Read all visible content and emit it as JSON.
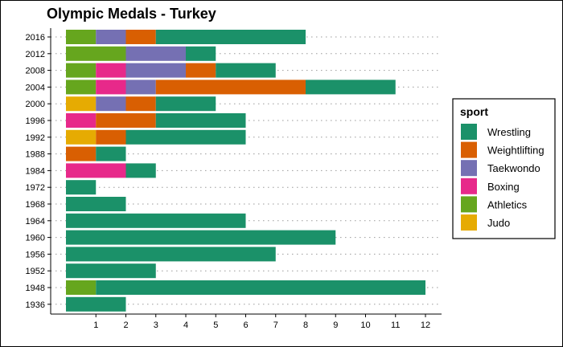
{
  "chart_data": {
    "type": "bar",
    "orientation": "horizontal",
    "stacked": true,
    "title": "Olympic Medals - Turkey",
    "xlabel": "",
    "ylabel": "",
    "xlim": [
      0,
      12.6
    ],
    "x_ticks": [
      1,
      2,
      3,
      4,
      5,
      6,
      7,
      8,
      9,
      10,
      11,
      12
    ],
    "grid": "dotted horizontal lines",
    "legend_title": "sport",
    "legend_position": "right",
    "categories": [
      "2016",
      "2012",
      "2008",
      "2004",
      "2000",
      "1996",
      "1992",
      "1988",
      "1984",
      "1972",
      "1968",
      "1964",
      "1960",
      "1956",
      "1952",
      "1948",
      "1936"
    ],
    "stack_order": [
      "Athletics",
      "Judo",
      "Boxing",
      "Taekwondo",
      "Weightlifting",
      "Wrestling"
    ],
    "series": [
      {
        "name": "Wrestling",
        "color": "#1b9169",
        "values": [
          5,
          1,
          2,
          3,
          2,
          3,
          4,
          1,
          1,
          1,
          2,
          6,
          9,
          7,
          3,
          11,
          2
        ]
      },
      {
        "name": "Weightlifting",
        "color": "#d95f02",
        "values": [
          1,
          0,
          1,
          5,
          1,
          2,
          1,
          1,
          0,
          0,
          0,
          0,
          0,
          0,
          0,
          0,
          0
        ]
      },
      {
        "name": "Taekwondo",
        "color": "#7570b3",
        "values": [
          1,
          2,
          2,
          1,
          1,
          0,
          0,
          0,
          0,
          0,
          0,
          0,
          0,
          0,
          0,
          0,
          0
        ]
      },
      {
        "name": "Boxing",
        "color": "#e7298a",
        "values": [
          0,
          0,
          1,
          1,
          0,
          1,
          0,
          0,
          2,
          0,
          0,
          0,
          0,
          0,
          0,
          0,
          0
        ]
      },
      {
        "name": "Athletics",
        "color": "#66a61e",
        "values": [
          1,
          2,
          1,
          1,
          0,
          0,
          0,
          0,
          0,
          0,
          0,
          0,
          0,
          0,
          0,
          1,
          0
        ]
      },
      {
        "name": "Judo",
        "color": "#e6ab02",
        "values": [
          0,
          0,
          0,
          0,
          1,
          0,
          1,
          0,
          0,
          0,
          0,
          0,
          0,
          0,
          0,
          0,
          0
        ]
      }
    ]
  }
}
